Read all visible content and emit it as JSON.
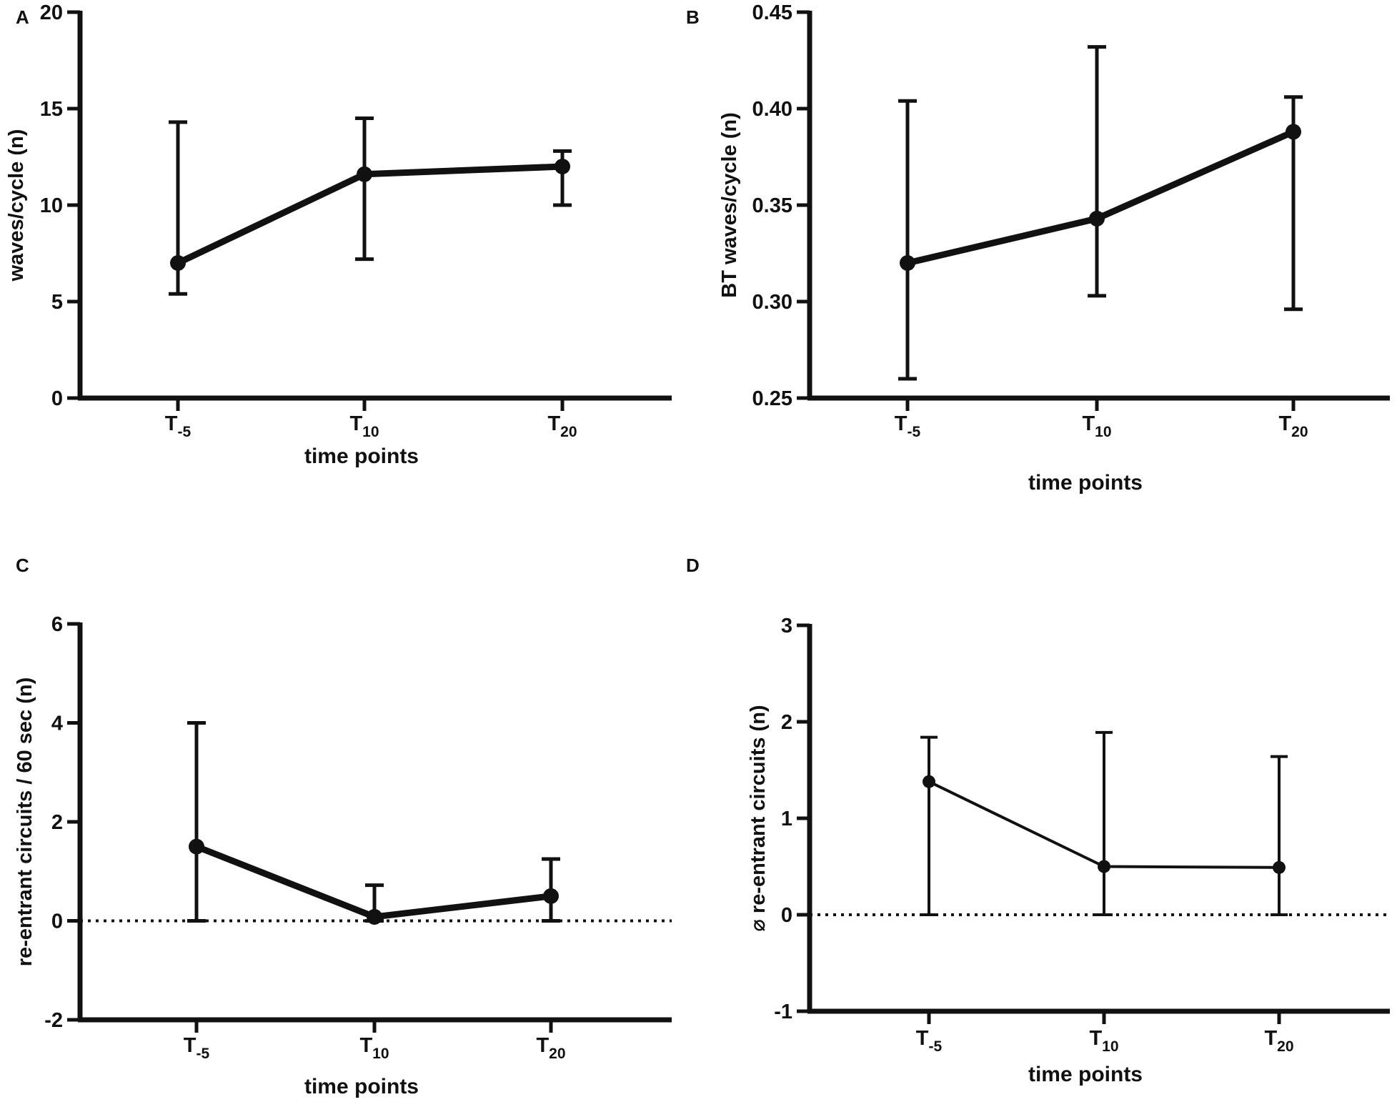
{
  "colors": {
    "ink": "#111111",
    "background": "#ffffff"
  },
  "chart_data": [
    {
      "panel_label": "A",
      "type": "line",
      "categories": [
        {
          "base": "T",
          "sub": "-5"
        },
        {
          "base": "T",
          "sub": "10"
        },
        {
          "base": "T",
          "sub": "20"
        }
      ],
      "values": [
        7.0,
        11.6,
        12.0
      ],
      "error_upper": [
        14.3,
        14.5,
        12.8
      ],
      "error_lower": [
        5.4,
        7.2,
        10.0
      ],
      "error_style": "both",
      "ylim": [
        0,
        20
      ],
      "yticks": [
        0,
        5,
        10,
        15,
        20
      ],
      "ytick_labels": [
        "0",
        "5",
        "10",
        "15",
        "20"
      ],
      "ylabel": "waves/cycle (n)",
      "xlabel": "time points",
      "reference_line": null,
      "marker": "large"
    },
    {
      "panel_label": "B",
      "type": "line",
      "categories": [
        {
          "base": "T",
          "sub": "-5"
        },
        {
          "base": "T",
          "sub": "10"
        },
        {
          "base": "T",
          "sub": "20"
        }
      ],
      "values": [
        0.32,
        0.343,
        0.388
      ],
      "error_upper": [
        0.404,
        0.432,
        0.406
      ],
      "error_lower": [
        0.26,
        0.303,
        0.296
      ],
      "error_style": "both",
      "ylim": [
        0.25,
        0.45
      ],
      "yticks": [
        0.25,
        0.3,
        0.35,
        0.4,
        0.45
      ],
      "ytick_labels": [
        "0.25",
        "0.30",
        "0.35",
        "0.40",
        "0.45"
      ],
      "ylabel": "BT waves/cycle (n)",
      "xlabel": "time points",
      "reference_line": null,
      "marker": "large"
    },
    {
      "panel_label": "C",
      "type": "line",
      "categories": [
        {
          "base": "T",
          "sub": "-5"
        },
        {
          "base": "T",
          "sub": "10"
        },
        {
          "base": "T",
          "sub": "20"
        }
      ],
      "values": [
        1.5,
        0.08,
        0.5
      ],
      "error_upper": [
        4.0,
        0.72,
        1.25
      ],
      "error_lower": [
        0,
        0,
        0
      ],
      "error_style": "both",
      "ylim": [
        -2,
        6
      ],
      "yticks": [
        -2,
        0,
        2,
        4,
        6
      ],
      "ytick_labels": [
        "-2",
        "0",
        "2",
        "4",
        "6"
      ],
      "ylabel": "re-entrant circuits / 60 sec (n)",
      "xlabel": "time points",
      "reference_line": 0,
      "marker": "large"
    },
    {
      "panel_label": "D",
      "type": "line",
      "categories": [
        {
          "base": "T",
          "sub": "-5"
        },
        {
          "base": "T",
          "sub": "10"
        },
        {
          "base": "T",
          "sub": "20"
        }
      ],
      "values": [
        1.38,
        0.5,
        0.49
      ],
      "error_upper": [
        1.84,
        1.89,
        1.64
      ],
      "error_lower": [
        0,
        0,
        0
      ],
      "error_style": "both",
      "ylim": [
        -1,
        3
      ],
      "yticks": [
        -1,
        0,
        1,
        2,
        3
      ],
      "ytick_labels": [
        "-1",
        "0",
        "1",
        "2",
        "3"
      ],
      "ylabel": "⌀ re-entrant circuits (n)",
      "xlabel": "time points",
      "reference_line": 0,
      "marker": "small"
    }
  ]
}
